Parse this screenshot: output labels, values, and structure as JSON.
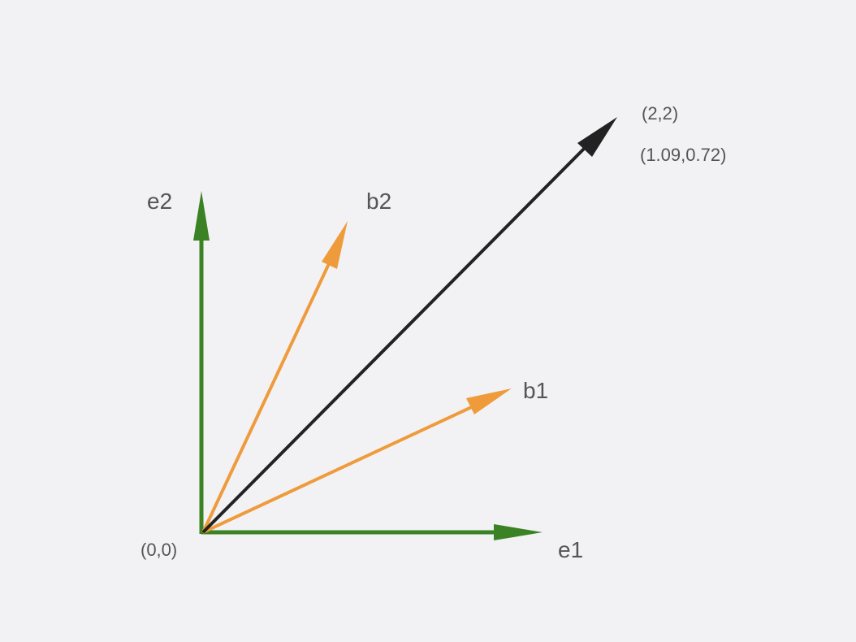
{
  "diagram": {
    "background": "#f2f2f4",
    "colors": {
      "basis_standard": "#3b8224",
      "basis_new": "#ef9b3c",
      "vector": "#222222",
      "label": "#555555"
    },
    "labels": {
      "origin": "(0,0)",
      "e1": "e1",
      "e2": "e2",
      "b1": "b1",
      "b2": "b2",
      "vector_standard_coords": "(2,2)",
      "vector_new_coords": "(1.09,0.72)"
    }
  }
}
